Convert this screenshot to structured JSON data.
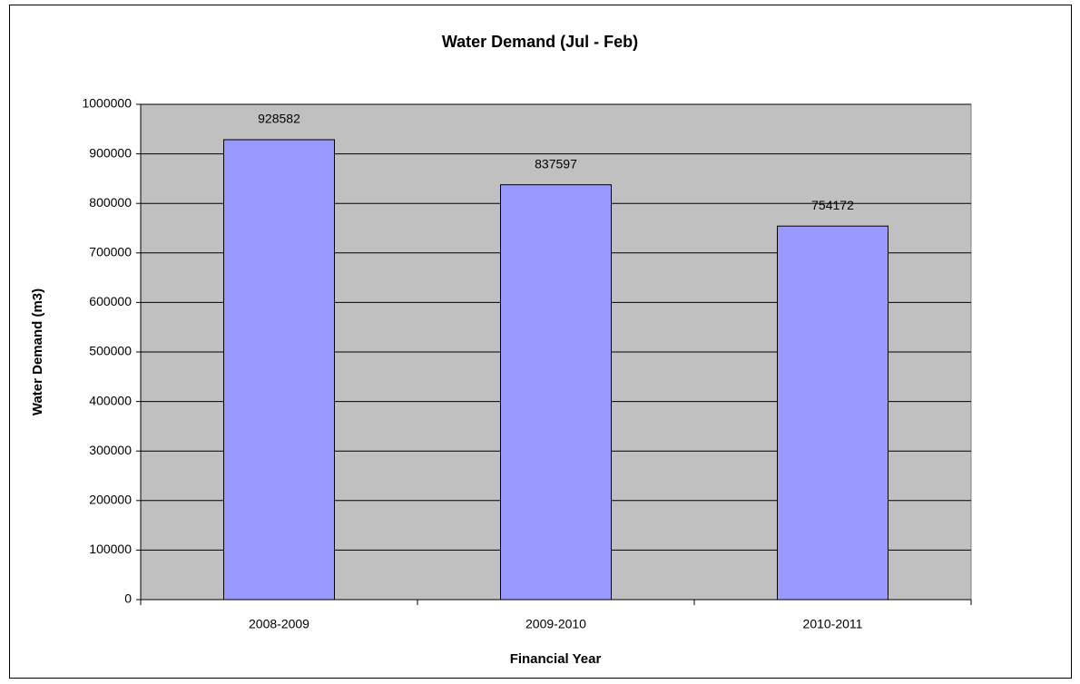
{
  "chart_data": {
    "type": "bar",
    "title": "Water Demand (Jul - Feb)",
    "x_label": "Financial Year",
    "y_label": "Water Demand (m3)",
    "categories": [
      "2008-2009",
      "2009-2010",
      "2010-2011"
    ],
    "values": [
      928582,
      837597,
      754172
    ],
    "color": "#9999ff",
    "ylim": [
      0,
      1000000
    ],
    "yticks": [
      0,
      100000,
      200000,
      300000,
      400000,
      500000,
      600000,
      700000,
      800000,
      900000,
      1000000
    ],
    "grid": true,
    "show_value_labels": true
  }
}
